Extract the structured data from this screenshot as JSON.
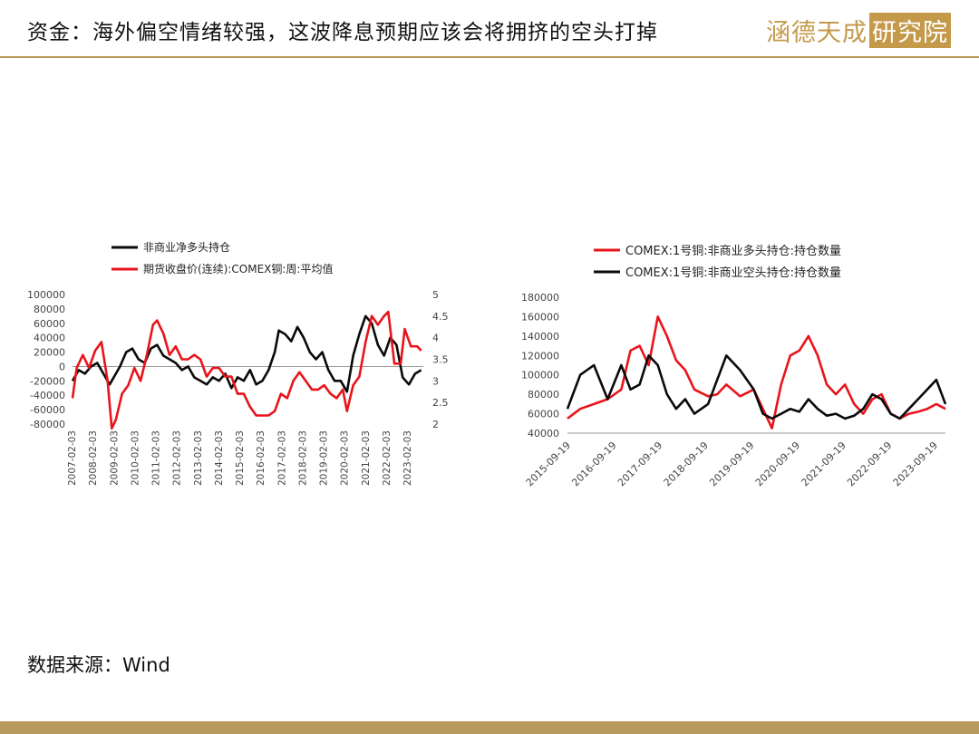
{
  "header": {
    "title": "资金：海外偏空情绪较强，这波降息预期应该会将拥挤的空头打掉"
  },
  "logo": {
    "text": "涵德天成",
    "box_text": "研究院"
  },
  "source": {
    "label": "数据来源：",
    "value": "Wind"
  },
  "colors": {
    "red": "#e8141b",
    "black": "#0a0a0a",
    "gold": "#b89a5e"
  },
  "chart_data": [
    {
      "type": "line",
      "legend_position": "top",
      "grid": false,
      "x_ticks": [
        "2007-02-03",
        "2008-02-03",
        "2009-02-03",
        "2010-02-03",
        "2011-02-03",
        "2012-02-03",
        "2013-02-03",
        "2014-02-03",
        "2015-02-03",
        "2016-02-03",
        "2017-02-03",
        "2018-02-03",
        "2019-02-03",
        "2020-02-03",
        "2021-02-03",
        "2022-02-03",
        "2023-02-03"
      ],
      "y_left_ticks": [
        "100000",
        "80000",
        "60000",
        "40000",
        "20000",
        "0",
        "-20000",
        "-40000",
        "-60000",
        "-80000"
      ],
      "y_right_ticks": [
        "5",
        "4.5",
        "4",
        "3.5",
        "3",
        "2.5",
        "2"
      ],
      "xlim": [
        2007.0,
        2024.0
      ],
      "ylim_left": [
        -80000,
        100000
      ],
      "ylim_right": [
        2,
        5
      ],
      "series": [
        {
          "name": "非商业净多头持仓",
          "axis": "left",
          "color": "#0a0a0a",
          "x": [
            2007.0,
            2007.3,
            2007.6,
            2007.9,
            2008.2,
            2008.5,
            2008.8,
            2009.0,
            2009.3,
            2009.6,
            2009.9,
            2010.2,
            2010.5,
            2010.8,
            2011.1,
            2011.4,
            2011.7,
            2012.0,
            2012.3,
            2012.6,
            2012.9,
            2013.2,
            2013.5,
            2013.8,
            2014.1,
            2014.4,
            2014.7,
            2015.0,
            2015.3,
            2015.6,
            2015.9,
            2016.2,
            2016.5,
            2016.8,
            2017.0,
            2017.3,
            2017.6,
            2017.9,
            2018.2,
            2018.5,
            2018.8,
            2019.1,
            2019.4,
            2019.7,
            2020.0,
            2020.3,
            2020.6,
            2020.9,
            2021.2,
            2021.5,
            2021.8,
            2022.1,
            2022.4,
            2022.7,
            2023.0,
            2023.3,
            2023.6,
            2023.9
          ],
          "y": [
            -20000,
            -5000,
            -10000,
            0,
            5000,
            -10000,
            -25000,
            -15000,
            0,
            20000,
            25000,
            10000,
            5000,
            25000,
            30000,
            15000,
            10000,
            5000,
            -5000,
            0,
            -15000,
            -20000,
            -25000,
            -15000,
            -20000,
            -10000,
            -30000,
            -15000,
            -20000,
            -5000,
            -25000,
            -20000,
            -5000,
            20000,
            50000,
            45000,
            35000,
            55000,
            40000,
            20000,
            10000,
            20000,
            -5000,
            -20000,
            -20000,
            -35000,
            15000,
            45000,
            70000,
            60000,
            30000,
            15000,
            40000,
            30000,
            -15000,
            -25000,
            -10000,
            -5000
          ]
        },
        {
          "name": "期货收盘价(连续):COMEX铜:周:平均值",
          "axis": "right",
          "color": "#e8141b",
          "x": [
            2007.0,
            2007.2,
            2007.5,
            2007.8,
            2008.1,
            2008.4,
            2008.7,
            2008.9,
            2009.1,
            2009.4,
            2009.7,
            2010.0,
            2010.3,
            2010.6,
            2010.9,
            2011.1,
            2011.4,
            2011.7,
            2012.0,
            2012.3,
            2012.6,
            2012.9,
            2013.2,
            2013.5,
            2013.8,
            2014.1,
            2014.4,
            2014.7,
            2015.0,
            2015.3,
            2015.6,
            2015.9,
            2016.2,
            2016.5,
            2016.8,
            2017.1,
            2017.4,
            2017.7,
            2018.0,
            2018.3,
            2018.6,
            2018.9,
            2019.2,
            2019.5,
            2019.8,
            2020.1,
            2020.3,
            2020.6,
            2020.9,
            2021.2,
            2021.5,
            2021.8,
            2022.1,
            2022.3,
            2022.6,
            2022.9,
            2023.1,
            2023.4,
            2023.7,
            2023.9
          ],
          "y": [
            2.6,
            3.3,
            3.6,
            3.3,
            3.7,
            3.9,
            3.0,
            1.9,
            2.1,
            2.7,
            2.9,
            3.3,
            3.0,
            3.6,
            4.3,
            4.4,
            4.1,
            3.6,
            3.8,
            3.5,
            3.5,
            3.6,
            3.5,
            3.1,
            3.3,
            3.3,
            3.1,
            3.1,
            2.7,
            2.7,
            2.4,
            2.2,
            2.2,
            2.2,
            2.3,
            2.7,
            2.6,
            3.0,
            3.2,
            3.0,
            2.8,
            2.8,
            2.9,
            2.7,
            2.6,
            2.8,
            2.3,
            2.9,
            3.1,
            3.9,
            4.5,
            4.3,
            4.5,
            4.6,
            3.4,
            3.4,
            4.2,
            3.8,
            3.8,
            3.7
          ]
        }
      ]
    },
    {
      "type": "line",
      "legend_position": "top",
      "grid": false,
      "x_ticks": [
        "2015-09-19",
        "2016-09-19",
        "2017-09-19",
        "2018-09-19",
        "2019-09-19",
        "2020-09-19",
        "2021-09-19",
        "2022-09-19",
        "2023-09-19"
      ],
      "y_ticks": [
        "180000",
        "160000",
        "140000",
        "120000",
        "100000",
        "80000",
        "60000",
        "40000"
      ],
      "xlim": [
        2015.72,
        2024.0
      ],
      "ylim": [
        40000,
        180000
      ],
      "series": [
        {
          "name": "COMEX:1号铜:非商业多头持仓:持仓数量",
          "color": "#e8141b",
          "x": [
            2015.72,
            2016.0,
            2016.3,
            2016.6,
            2016.9,
            2017.1,
            2017.3,
            2017.5,
            2017.7,
            2017.9,
            2018.1,
            2018.3,
            2018.5,
            2018.8,
            2019.0,
            2019.2,
            2019.5,
            2019.8,
            2020.0,
            2020.2,
            2020.4,
            2020.6,
            2020.8,
            2021.0,
            2021.2,
            2021.4,
            2021.6,
            2021.8,
            2022.0,
            2022.2,
            2022.4,
            2022.6,
            2022.8,
            2023.0,
            2023.2,
            2023.4,
            2023.6,
            2023.8,
            2024.0
          ],
          "y": [
            55000,
            65000,
            70000,
            75000,
            85000,
            125000,
            130000,
            110000,
            160000,
            140000,
            115000,
            105000,
            85000,
            78000,
            80000,
            90000,
            78000,
            85000,
            65000,
            45000,
            90000,
            120000,
            125000,
            140000,
            120000,
            90000,
            80000,
            90000,
            70000,
            60000,
            75000,
            80000,
            60000,
            55000,
            60000,
            62000,
            65000,
            70000,
            65000
          ]
        },
        {
          "name": "COMEX:1号铜:非商业空头持仓:持仓数量",
          "color": "#0a0a0a",
          "x": [
            2015.72,
            2016.0,
            2016.3,
            2016.6,
            2016.9,
            2017.1,
            2017.3,
            2017.5,
            2017.7,
            2017.9,
            2018.1,
            2018.3,
            2018.5,
            2018.8,
            2019.0,
            2019.2,
            2019.5,
            2019.8,
            2020.0,
            2020.2,
            2020.4,
            2020.6,
            2020.8,
            2021.0,
            2021.2,
            2021.4,
            2021.6,
            2021.8,
            2022.0,
            2022.2,
            2022.4,
            2022.6,
            2022.8,
            2023.0,
            2023.2,
            2023.4,
            2023.6,
            2023.8,
            2024.0
          ],
          "y": [
            65000,
            100000,
            110000,
            75000,
            110000,
            85000,
            90000,
            120000,
            110000,
            80000,
            65000,
            75000,
            60000,
            70000,
            95000,
            120000,
            105000,
            85000,
            60000,
            55000,
            60000,
            65000,
            62000,
            75000,
            65000,
            58000,
            60000,
            55000,
            58000,
            65000,
            80000,
            75000,
            60000,
            55000,
            65000,
            75000,
            85000,
            95000,
            70000
          ]
        }
      ]
    }
  ]
}
